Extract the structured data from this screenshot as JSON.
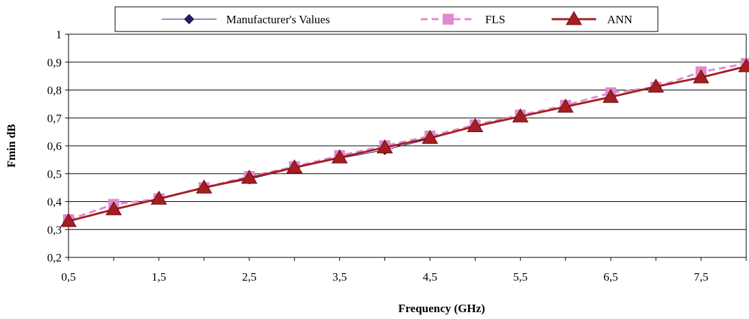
{
  "chart_data": {
    "type": "line",
    "title": "",
    "xlabel": "Frequency (GHz)",
    "ylabel": "Fmin dB",
    "x": [
      0.5,
      1,
      1.5,
      2,
      2.5,
      3,
      3.5,
      4,
      4.5,
      5,
      5.5,
      6,
      6.5,
      7,
      7.5,
      8
    ],
    "x_tick_labels": [
      "0,5",
      "1,5",
      "2,5",
      "3,5",
      "4,5",
      "5,5",
      "6,5",
      "7,5"
    ],
    "x_tick_values": [
      0.5,
      1.5,
      2.5,
      3.5,
      4.5,
      5.5,
      6.5,
      7.5
    ],
    "xlim": [
      0.5,
      8
    ],
    "y_tick_labels": [
      "0,2",
      "0,3",
      "0,4",
      "0,5",
      "0,6",
      "0,7",
      "0,8",
      "0,9",
      "1"
    ],
    "y_tick_values": [
      0.2,
      0.3,
      0.4,
      0.5,
      0.6,
      0.7,
      0.8,
      0.9,
      1.0
    ],
    "ylim": [
      0.2,
      1.0
    ],
    "grid": "horizontal",
    "legend_position": "top",
    "series": [
      {
        "name": "Manufacturer's Values",
        "color": "#1f1f6e",
        "marker": "diamond",
        "line": "solid-thin",
        "values": [
          0.33,
          0.37,
          0.41,
          0.45,
          0.48,
          0.52,
          0.555,
          0.585,
          0.625,
          0.67,
          0.705,
          0.74,
          0.775,
          0.81,
          0.845,
          0.885
        ]
      },
      {
        "name": "FLS",
        "color": "#e08ad0",
        "marker": "square",
        "line": "dashed",
        "values": [
          0.335,
          0.39,
          0.41,
          0.45,
          0.49,
          0.525,
          0.565,
          0.6,
          0.635,
          0.675,
          0.71,
          0.745,
          0.79,
          0.81,
          0.865,
          0.895
        ]
      },
      {
        "name": "ANN",
        "color": "#a51e22",
        "marker": "triangle",
        "line": "solid-thick",
        "values": [
          0.33,
          0.372,
          0.41,
          0.45,
          0.485,
          0.522,
          0.558,
          0.594,
          0.628,
          0.67,
          0.705,
          0.74,
          0.775,
          0.812,
          0.845,
          0.885
        ]
      }
    ]
  }
}
